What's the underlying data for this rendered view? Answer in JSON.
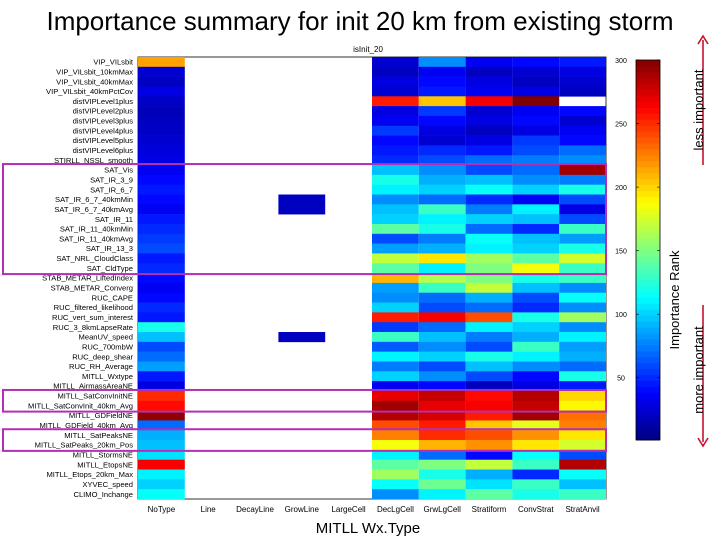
{
  "title": "Importance summary for init 20 km from existing storm",
  "chart_data": {
    "type": "heatmap",
    "panel_title": "isInit_20",
    "xlabel": "MITLL Wx.Type",
    "colorbar_label": "Importance Rank",
    "colorbar_ticks": [
      50,
      100,
      150,
      200,
      250,
      300
    ],
    "colorbar_range": [
      1,
      300
    ],
    "rank_annotations": {
      "top": "less important",
      "bottom": "more important"
    },
    "highlight_colors": {
      "box": "#b42fb4",
      "arrow": "#c8102e"
    },
    "columns": [
      "NoType",
      "Line",
      "DecayLine",
      "GrowLine",
      "LargeCell",
      "DecLgCell",
      "GrwLgCell",
      "Stratiform",
      "ConvStrat",
      "StratAnvil"
    ],
    "rows": [
      "VIP_VILsbit",
      "VIP_VILsbit_10kmMax",
      "VIP_VILsbit_40kmMax",
      "VIP_VILsbit_40kmPctCov",
      "distVIPLevel1plus",
      "distVIPLevel2plus",
      "distVIPLevel3plus",
      "distVIPLevel4plus",
      "distVIPLevel5plus",
      "distVIPLevel6plus",
      "STIRLL_NSSL_smooth",
      "SAT_Vis",
      "SAT_IR_3_9",
      "SAT_IR_6_7",
      "SAT_IR_6_7_40kmMin",
      "SAT_IR_6_7_40kmAvg",
      "SAT_IR_11",
      "SAT_IR_11_40kmMin",
      "SAT_IR_11_40kmAvg",
      "SAT_IR_13_3",
      "SAT_NRL_CloudClass",
      "SAT_CldType",
      "STAB_METAR_LiftedIndex",
      "STAB_METAR_Converg",
      "RUC_CAPE",
      "RUC_filtered_likelihood",
      "RUC_vert_sum_interest",
      "RUC_3_8kmLapseRate",
      "MeanUV_speed",
      "RUC_700mbW",
      "RUC_deep_shear",
      "RUC_RH_Average",
      "MITLL_Wxtype",
      "MITLL_AirmassAreaNE",
      "MITLL_SatConvInitNE",
      "MITLL_SatConvInit_40km_Avg",
      "MITLL_GDFieldNE",
      "MITLL_GDField_40km_Avg",
      "MITLL_SatPeaksNE",
      "MITLL_SatPeaks_20km_Pos",
      "MITLL_StormsNE",
      "MITLL_EtopsNE",
      "MITLL_Etops_20km_Max",
      "XYVEC_speed",
      "CLIMO_Inchange"
    ],
    "values": [
      [
        215,
        null,
        null,
        null,
        null,
        25,
        80,
        35,
        40,
        45
      ],
      [
        25,
        null,
        null,
        null,
        null,
        20,
        35,
        20,
        25,
        30
      ],
      [
        20,
        null,
        null,
        null,
        null,
        30,
        40,
        30,
        20,
        25
      ],
      [
        30,
        null,
        null,
        null,
        null,
        25,
        45,
        35,
        30,
        20
      ],
      [
        22,
        null,
        null,
        null,
        null,
        255,
        205,
        265,
        300,
        null
      ],
      [
        18,
        null,
        null,
        null,
        null,
        30,
        55,
        25,
        35,
        40
      ],
      [
        20,
        null,
        null,
        null,
        null,
        35,
        40,
        30,
        40,
        25
      ],
      [
        22,
        null,
        null,
        null,
        null,
        55,
        30,
        20,
        30,
        35
      ],
      [
        25,
        null,
        null,
        null,
        null,
        40,
        25,
        30,
        55,
        40
      ],
      [
        28,
        null,
        null,
        null,
        null,
        45,
        50,
        45,
        60,
        70
      ],
      [
        30,
        null,
        null,
        null,
        null,
        50,
        60,
        70,
        75,
        80
      ],
      [
        35,
        null,
        null,
        null,
        null,
        95,
        80,
        60,
        70,
        290
      ],
      [
        40,
        null,
        null,
        null,
        null,
        120,
        90,
        95,
        80,
        75
      ],
      [
        45,
        null,
        null,
        null,
        null,
        110,
        100,
        115,
        100,
        120
      ],
      [
        40,
        null,
        null,
        20,
        null,
        80,
        70,
        50,
        35,
        60
      ],
      [
        35,
        null,
        null,
        20,
        null,
        95,
        130,
        75,
        110,
        30
      ],
      [
        45,
        null,
        null,
        null,
        null,
        100,
        110,
        100,
        95,
        60
      ],
      [
        50,
        null,
        null,
        null,
        null,
        140,
        120,
        70,
        50,
        130
      ],
      [
        55,
        null,
        null,
        null,
        null,
        60,
        75,
        115,
        95,
        85
      ],
      [
        60,
        null,
        null,
        null,
        null,
        85,
        90,
        110,
        100,
        120
      ],
      [
        45,
        null,
        null,
        null,
        null,
        170,
        195,
        160,
        140,
        175
      ],
      [
        50,
        null,
        null,
        null,
        null,
        140,
        110,
        150,
        185,
        130
      ],
      [
        40,
        null,
        null,
        null,
        null,
        210,
        165,
        150,
        120,
        130
      ],
      [
        35,
        null,
        null,
        null,
        null,
        85,
        130,
        170,
        95,
        80
      ],
      [
        40,
        null,
        null,
        null,
        null,
        80,
        70,
        90,
        60,
        115
      ],
      [
        50,
        null,
        null,
        null,
        null,
        100,
        60,
        70,
        50,
        80
      ],
      [
        45,
        null,
        null,
        null,
        null,
        255,
        265,
        240,
        120,
        160
      ],
      [
        120,
        null,
        null,
        null,
        null,
        55,
        70,
        110,
        100,
        80
      ],
      [
        95,
        null,
        null,
        20,
        null,
        130,
        95,
        75,
        90,
        110
      ],
      [
        60,
        null,
        null,
        null,
        null,
        65,
        80,
        60,
        130,
        85
      ],
      [
        70,
        null,
        null,
        null,
        null,
        110,
        100,
        120,
        110,
        90
      ],
      [
        85,
        null,
        null,
        null,
        null,
        75,
        60,
        95,
        80,
        70
      ],
      [
        45,
        null,
        null,
        null,
        null,
        100,
        80,
        60,
        40,
        120
      ],
      [
        30,
        null,
        null,
        null,
        null,
        35,
        40,
        20,
        30,
        45
      ],
      [
        250,
        null,
        null,
        null,
        null,
        270,
        280,
        260,
        285,
        200
      ],
      [
        260,
        null,
        null,
        null,
        null,
        290,
        270,
        265,
        280,
        190
      ],
      [
        295,
        null,
        null,
        null,
        null,
        285,
        275,
        255,
        290,
        230
      ],
      [
        70,
        null,
        null,
        null,
        null,
        240,
        255,
        205,
        180,
        225
      ],
      [
        90,
        null,
        null,
        null,
        null,
        225,
        250,
        240,
        220,
        195
      ],
      [
        95,
        null,
        null,
        null,
        null,
        185,
        210,
        220,
        195,
        175
      ],
      [
        105,
        null,
        null,
        null,
        null,
        110,
        70,
        40,
        115,
        60
      ],
      [
        265,
        null,
        null,
        null,
        null,
        140,
        150,
        170,
        130,
        285
      ],
      [
        110,
        null,
        null,
        null,
        null,
        160,
        120,
        90,
        50,
        115
      ],
      [
        100,
        null,
        null,
        null,
        null,
        115,
        145,
        105,
        130,
        95
      ],
      [
        115,
        null,
        null,
        null,
        null,
        80,
        110,
        140,
        120,
        130
      ]
    ],
    "highlighted_rows": [
      [
        "SAT_Vis",
        "SAT_CldType"
      ],
      [
        "MITLL_SatConvInitNE",
        "MITLL_SatConvInit_40km_Avg"
      ],
      [
        "MITLL_SatPeaksNE",
        "MITLL_SatPeaks_20km_Pos"
      ]
    ]
  }
}
